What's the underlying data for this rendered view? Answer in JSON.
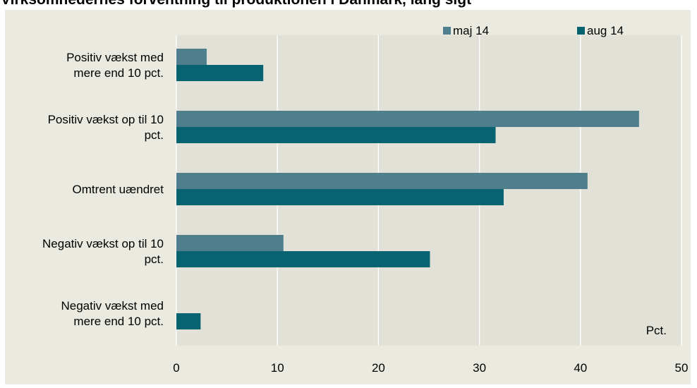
{
  "chart_data": {
    "type": "bar",
    "orientation": "horizontal",
    "title": "Virksomhedernes forventning til produktionen i Danmark, lang sigt",
    "unit_label": "Pct.",
    "categories": [
      [
        "Positiv vækst med",
        "mere end 10 pct."
      ],
      [
        "Positiv vækst op til 10",
        "pct."
      ],
      [
        "Omtrent uændret"
      ],
      [
        "Negativ vækst op til 10",
        "pct."
      ],
      [
        "Negativ vækst med",
        "mere end 10 pct."
      ]
    ],
    "series": [
      {
        "name": "maj 14",
        "color": "#4f7f8c",
        "values": [
          3,
          45.8,
          40.7,
          10.6,
          0
        ]
      },
      {
        "name": "aug 14",
        "color": "#07636f",
        "values": [
          8.6,
          31.6,
          32.4,
          25.1,
          2.4
        ]
      }
    ],
    "xlim": [
      0,
      50
    ],
    "xticks": [
      0,
      10,
      20,
      30,
      40,
      50
    ],
    "grid": true,
    "legend_position": "top-right",
    "plot_background": "#e2e1d8",
    "panel_background": "#ebeae1"
  }
}
